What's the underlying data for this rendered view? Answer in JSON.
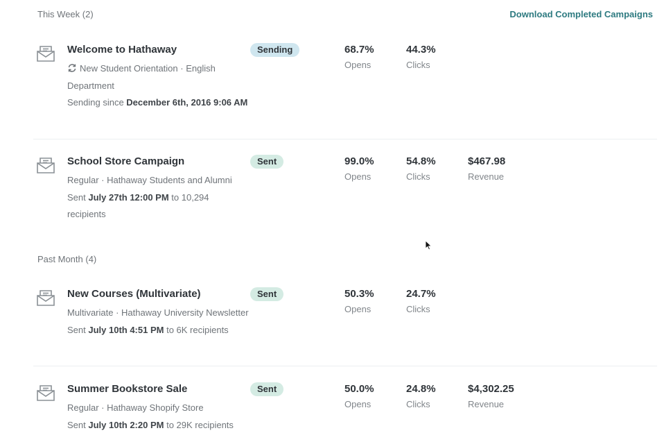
{
  "this_week": {
    "header": "This Week (2)",
    "download_label": "Download Completed Campaigns",
    "campaigns": [
      {
        "title": "Welcome to Hathaway",
        "meta": "New Student Orientation · English Department",
        "status_prefix": "Sending since ",
        "status_date": "December 6th, 2016 9:06 AM",
        "badge": "Sending",
        "opens": "68.7%",
        "opens_label": "Opens",
        "clicks": "44.3%",
        "clicks_label": "Clicks"
      },
      {
        "title": "School Store Campaign",
        "meta": "Regular · Hathaway Students and Alumni",
        "status_prefix": "Sent ",
        "status_date": "July 27th 12:00 PM",
        "status_suffix": " to 10,294 recipients",
        "badge": "Sent",
        "opens": "99.0%",
        "opens_label": "Opens",
        "clicks": "54.8%",
        "clicks_label": "Clicks",
        "revenue": "$467.98",
        "revenue_label": "Revenue"
      }
    ]
  },
  "past_month": {
    "header": "Past Month (4)",
    "campaigns": [
      {
        "title": "New Courses (Multivariate)",
        "meta": "Multivariate · Hathaway University Newsletter",
        "status_prefix": "Sent ",
        "status_date": "July 10th 4:51 PM",
        "status_suffix": " to 6K recipients",
        "badge": "Sent",
        "opens": "50.3%",
        "opens_label": "Opens",
        "clicks": "24.7%",
        "clicks_label": "Clicks"
      },
      {
        "title": "Summer Bookstore Sale",
        "meta": "Regular · Hathaway Shopify Store",
        "status_prefix": "Sent ",
        "status_date": "July 10th 2:20 PM",
        "status_suffix": " to 29K recipients",
        "badge": "Sent",
        "opens": "50.0%",
        "opens_label": "Opens",
        "clicks": "24.8%",
        "clicks_label": "Clicks",
        "revenue": "$4,302.25",
        "revenue_label": "Revenue"
      }
    ]
  },
  "icons": {
    "campaign": "mail-icon",
    "recurring": "sync-icon",
    "pointer": "cursor-icon"
  },
  "colors": {
    "link": "#2d7a80",
    "sending_badge": "#cfe6ef",
    "sent_badge": "#d4ebe3"
  }
}
